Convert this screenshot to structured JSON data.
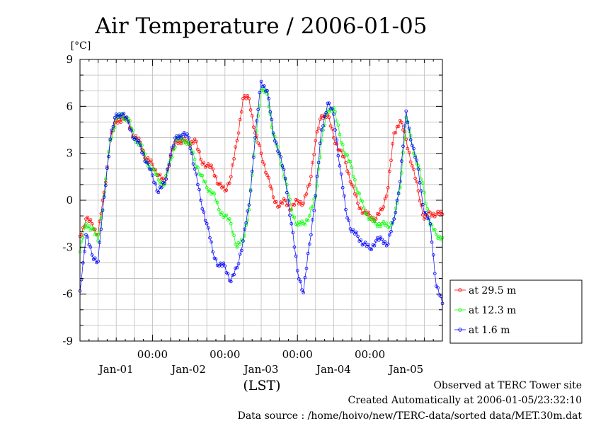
{
  "chart_data": {
    "type": "line",
    "title": "Air Temperature / 2006-01-05",
    "ylabel": "[°C]",
    "xlabel": "(LST)",
    "ylim": [
      -9,
      9
    ],
    "yticks": [
      -9,
      -6,
      -3,
      0,
      3,
      6,
      9
    ],
    "xlim": [
      0,
      120
    ],
    "time_tick_labels": [
      "00:00",
      "00:00",
      "00:00",
      "00:00"
    ],
    "date_labels": [
      "Jan-01",
      "Jan-02",
      "Jan-03",
      "Jan-04",
      "Jan-05"
    ],
    "grid": true,
    "legend_position": "lower-right outside",
    "x_hours": [
      0,
      2,
      4,
      6,
      8,
      10,
      12,
      14,
      16,
      18,
      20,
      22,
      24,
      26,
      28,
      30,
      32,
      34,
      36,
      38,
      40,
      42,
      44,
      46,
      48,
      50,
      52,
      54,
      56,
      58,
      60,
      62,
      64,
      66,
      68,
      70,
      72,
      74,
      76,
      78,
      80,
      82,
      84,
      86,
      88,
      90,
      92,
      94,
      96,
      98,
      100,
      102,
      104,
      106,
      108,
      110,
      112,
      114,
      116,
      118,
      120
    ],
    "series": [
      {
        "name": "at 29.5 m",
        "color": "#ff0000",
        "values": [
          -2.3,
          -1.2,
          -1.5,
          -2.2,
          0.5,
          3.8,
          5.1,
          5.2,
          5.1,
          4.0,
          3.7,
          2.6,
          2.3,
          1.6,
          1.1,
          2.8,
          3.8,
          3.8,
          3.6,
          3.9,
          2.6,
          2.2,
          2.0,
          1.0,
          0.6,
          1.5,
          3.8,
          6.5,
          6.5,
          4.3,
          3.0,
          1.6,
          0.2,
          -0.4,
          0.0,
          -0.6,
          0.0,
          -0.2,
          1.0,
          3.8,
          5.4,
          5.5,
          4.0,
          3.2,
          2.4,
          1.0,
          -0.2,
          -0.8,
          -1.0,
          -1.2,
          -0.6,
          0.8,
          4.3,
          5.1,
          3.9,
          2.2,
          0.6,
          -1.2,
          -0.8,
          -0.9,
          -0.9
        ]
      },
      {
        "name": "at 12.3 m",
        "color": "#00ff00",
        "values": [
          -3.3,
          -1.5,
          -1.8,
          -2.6,
          0.3,
          3.8,
          5.2,
          5.4,
          5.2,
          4.0,
          3.6,
          2.5,
          2.0,
          1.3,
          1.0,
          2.6,
          3.9,
          3.9,
          3.7,
          2.6,
          1.6,
          0.8,
          0.5,
          -0.6,
          -1.0,
          -1.5,
          -3.0,
          -2.6,
          -0.6,
          3.8,
          7.0,
          6.8,
          4.2,
          2.9,
          1.3,
          -0.6,
          -1.6,
          -1.5,
          -1.0,
          0.2,
          3.8,
          5.8,
          5.9,
          4.2,
          2.9,
          2.1,
          0.5,
          -0.5,
          -1.2,
          -1.5,
          -1.5,
          -1.7,
          -1.2,
          0.8,
          5.3,
          3.5,
          2.2,
          0.5,
          -1.6,
          -2.2,
          -2.4
        ]
      },
      {
        "name": "at 1.6 m",
        "color": "#0000ff",
        "values": [
          -5.8,
          -2.2,
          -3.5,
          -3.9,
          0.2,
          3.9,
          5.5,
          5.5,
          5.0,
          3.9,
          3.5,
          2.4,
          1.6,
          0.5,
          1.1,
          2.9,
          4.1,
          4.2,
          4.0,
          2.0,
          0.0,
          -1.5,
          -3.3,
          -4.2,
          -4.2,
          -5.2,
          -4.3,
          -2.6,
          -0.3,
          4.0,
          7.6,
          7.0,
          4.3,
          3.0,
          1.4,
          -1.5,
          -4.5,
          -5.9,
          -2.8,
          0.3,
          4.5,
          6.2,
          5.5,
          2.2,
          -0.6,
          -2.0,
          -2.3,
          -2.8,
          -3.1,
          -2.6,
          -2.5,
          -2.8,
          -1.2,
          1.2,
          5.7,
          3.5,
          2.0,
          -0.8,
          -1.5,
          -5.5,
          -6.6
        ]
      }
    ]
  },
  "footer": {
    "observed": "Observed at TERC Tower site",
    "created": "Created Automatically at 2006-01-05/23:32:10",
    "source": "Data source : /home/hoivo/new/TERC-data/sorted  data/MET.30m.dat"
  }
}
